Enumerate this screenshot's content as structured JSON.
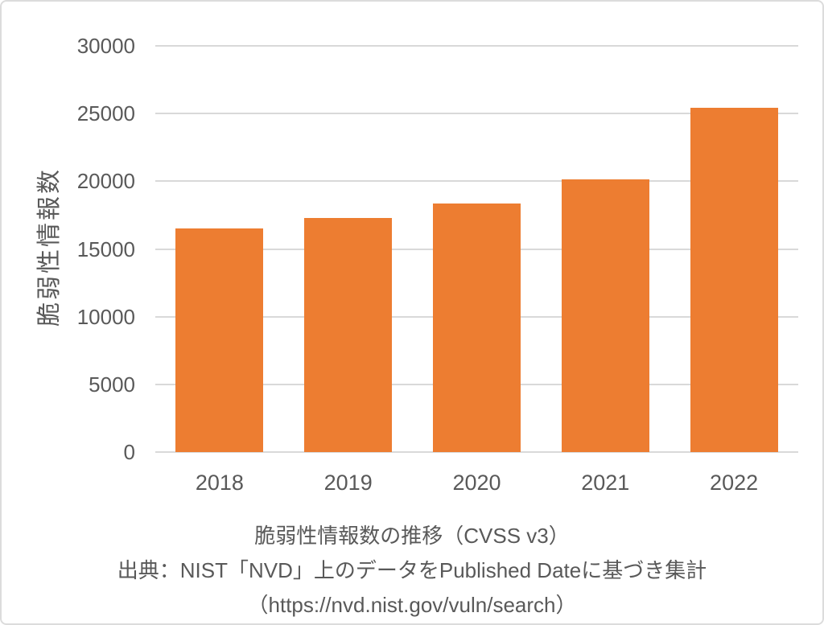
{
  "chart_data": {
    "type": "bar",
    "categories": [
      "2018",
      "2019",
      "2020",
      "2021",
      "2022"
    ],
    "values": [
      16500,
      17300,
      18350,
      20150,
      25450
    ],
    "title": "脆弱性情報数の推移（CVSS v3）",
    "xlabel": "",
    "ylabel": "脆弱性情報数",
    "ylim": [
      0,
      30000
    ],
    "yticks": [
      0,
      5000,
      10000,
      15000,
      20000,
      25000,
      30000
    ],
    "grid": true,
    "legend": "none",
    "bar_color": "#ED7D31"
  },
  "caption": {
    "line1": "脆弱性情報数の推移（CVSS v3）",
    "line2": "出典：NIST「NVD」上のデータをPublished Dateに基づき集計",
    "line3": "（https://nvd.nist.gov/vuln/search）"
  },
  "colors": {
    "bar": "#ED7D31",
    "gridline": "#D9D9D9",
    "text": "#595959",
    "card_border": "#DCDCDC",
    "background": "#FFFFFF"
  }
}
